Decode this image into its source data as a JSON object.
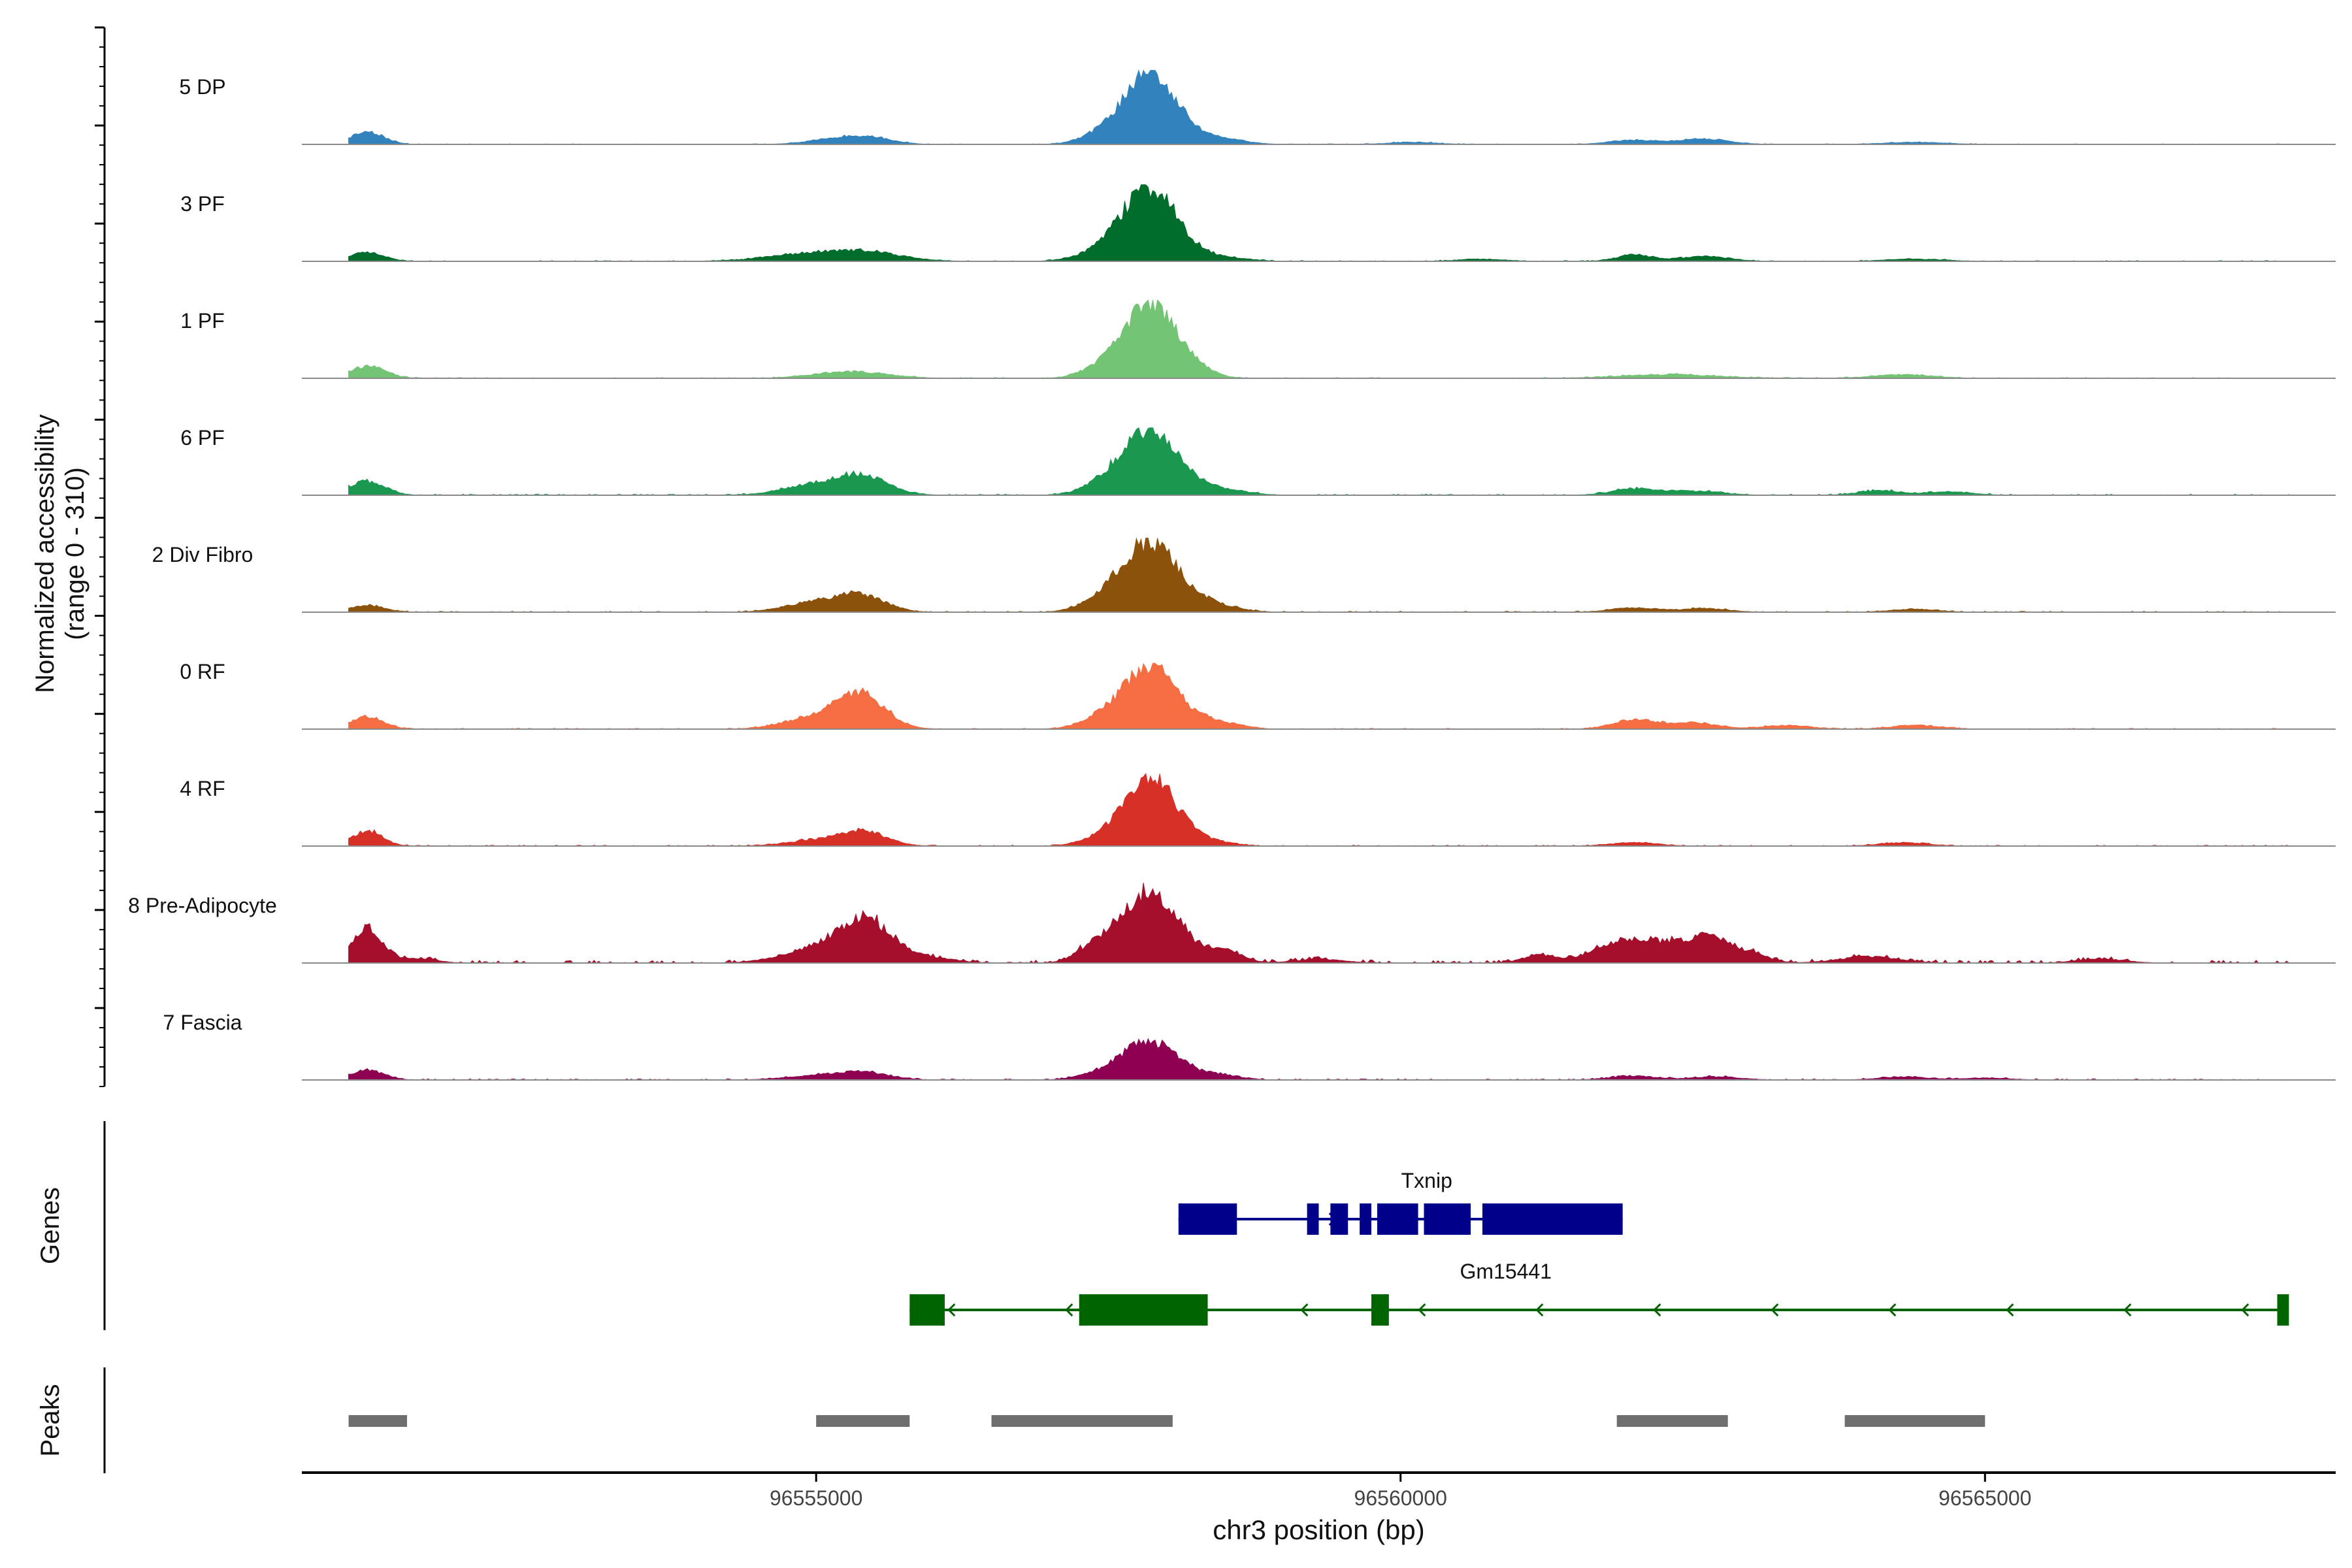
{
  "chart_data": {
    "type": "area",
    "title": "",
    "ylabel_line1": "Normalized accessibility",
    "ylabel_line2": "(range 0 - 310)",
    "xlabel": "chr3 position (bp)",
    "xlim": [
      96550600,
      96568000
    ],
    "ylim": [
      0,
      310
    ],
    "x_ticks": [
      96555000,
      96560000,
      96565000
    ],
    "x_tick_labels": [
      "96555000",
      "96560000",
      "96565000"
    ],
    "tracks": [
      {
        "name": "5 DP",
        "color": "#3182bd",
        "scale": 0.9,
        "peaks": [
          [
            96551160,
            0.18,
            140
          ],
          [
            96555150,
            0.07,
            220
          ],
          [
            96555450,
            0.09,
            200
          ],
          [
            96557340,
            0.06,
            150
          ],
          [
            96557850,
            1.0,
            240
          ],
          [
            96558500,
            0.07,
            180
          ],
          [
            96560100,
            0.03,
            200
          ],
          [
            96562000,
            0.06,
            200
          ],
          [
            96562600,
            0.08,
            200
          ],
          [
            96564400,
            0.03,
            250
          ]
        ],
        "noise": 0.012,
        "range": [
          96551000,
          96567600
        ],
        "seed": 11
      },
      {
        "name": "3 PF",
        "color": "#006d2c",
        "scale": 0.93,
        "peaks": [
          [
            96551160,
            0.12,
            140
          ],
          [
            96555050,
            0.12,
            400
          ],
          [
            96555500,
            0.07,
            280
          ],
          [
            96557400,
            0.08,
            200
          ],
          [
            96557850,
            1.0,
            240
          ],
          [
            96558500,
            0.05,
            200
          ],
          [
            96560700,
            0.03,
            200
          ],
          [
            96562000,
            0.09,
            150
          ],
          [
            96562600,
            0.07,
            200
          ],
          [
            96564400,
            0.03,
            250
          ]
        ],
        "noise": 0.015,
        "range": [
          96551000,
          96567600
        ],
        "seed": 23
      },
      {
        "name": "1 PF",
        "color": "#74c476",
        "scale": 0.95,
        "peaks": [
          [
            96551160,
            0.16,
            150
          ],
          [
            96555300,
            0.09,
            300
          ],
          [
            96557380,
            0.08,
            150
          ],
          [
            96557850,
            1.0,
            230
          ],
          [
            96558250,
            0.08,
            150
          ],
          [
            96562300,
            0.05,
            400
          ],
          [
            96564300,
            0.05,
            250
          ]
        ],
        "noise": 0.015,
        "range": [
          96551000,
          96567600
        ],
        "seed": 37
      },
      {
        "name": "6 PF",
        "color": "#1a9850",
        "scale": 0.82,
        "peaks": [
          [
            96551160,
            0.22,
            150
          ],
          [
            96555000,
            0.15,
            280
          ],
          [
            96555400,
            0.27,
            220
          ],
          [
            96557400,
            0.07,
            180
          ],
          [
            96557850,
            1.0,
            250
          ],
          [
            96558500,
            0.08,
            200
          ],
          [
            96562000,
            0.09,
            200
          ],
          [
            96562500,
            0.06,
            250
          ],
          [
            96564100,
            0.07,
            180
          ],
          [
            96564700,
            0.05,
            200
          ]
        ],
        "noise": 0.025,
        "range": [
          96551000,
          96567600
        ],
        "seed": 41
      },
      {
        "name": "2 Div Fibro",
        "color": "#8c510a",
        "scale": 0.9,
        "peaks": [
          [
            96551160,
            0.1,
            140
          ],
          [
            96555000,
            0.14,
            250
          ],
          [
            96555400,
            0.22,
            200
          ],
          [
            96557370,
            0.08,
            160
          ],
          [
            96557850,
            1.0,
            250
          ],
          [
            96558450,
            0.08,
            180
          ],
          [
            96562000,
            0.06,
            200
          ],
          [
            96562600,
            0.05,
            200
          ],
          [
            96564400,
            0.04,
            200
          ]
        ],
        "noise": 0.02,
        "range": [
          96551000,
          96567600
        ],
        "seed": 53
      },
      {
        "name": "0 RF",
        "color": "#f46d43",
        "scale": 0.8,
        "peaks": [
          [
            96551160,
            0.2,
            140
          ],
          [
            96555000,
            0.2,
            260
          ],
          [
            96555400,
            0.52,
            200
          ],
          [
            96557370,
            0.1,
            150
          ],
          [
            96557850,
            1.0,
            240
          ],
          [
            96558450,
            0.1,
            180
          ],
          [
            96562000,
            0.15,
            180
          ],
          [
            96562500,
            0.1,
            200
          ],
          [
            96563300,
            0.06,
            200
          ],
          [
            96564400,
            0.06,
            200
          ]
        ],
        "noise": 0.02,
        "range": [
          96551000,
          96567600
        ],
        "seed": 67
      },
      {
        "name": "4 RF",
        "color": "#d73027",
        "scale": 0.88,
        "peaks": [
          [
            96551160,
            0.22,
            130
          ],
          [
            96555000,
            0.08,
            250
          ],
          [
            96555400,
            0.2,
            200
          ],
          [
            96557370,
            0.06,
            150
          ],
          [
            96557850,
            1.0,
            230
          ],
          [
            96558400,
            0.05,
            180
          ],
          [
            96562000,
            0.05,
            200
          ],
          [
            96564300,
            0.05,
            200
          ]
        ],
        "noise": 0.02,
        "range": [
          96551000,
          96567600
        ],
        "seed": 79
      },
      {
        "name": "8 Pre-Adipocyte",
        "color": "#a50f2b",
        "scale": 1.0,
        "peaks": [
          [
            96551160,
            0.45,
            130
          ],
          [
            96551600,
            0.06,
            150
          ],
          [
            96555050,
            0.2,
            300
          ],
          [
            96555450,
            0.48,
            220
          ],
          [
            96556000,
            0.06,
            200
          ],
          [
            96557370,
            0.15,
            150
          ],
          [
            96557850,
            0.9,
            250
          ],
          [
            96558500,
            0.14,
            150
          ],
          [
            96559300,
            0.05,
            200
          ],
          [
            96561200,
            0.1,
            150
          ],
          [
            96561800,
            0.18,
            200
          ],
          [
            96562200,
            0.25,
            250
          ],
          [
            96562650,
            0.3,
            180
          ],
          [
            96563000,
            0.1,
            150
          ],
          [
            96564000,
            0.08,
            250
          ],
          [
            96566000,
            0.05,
            200
          ]
        ],
        "noise": 0.05,
        "range": [
          96551000,
          96567600
        ],
        "seed": 97
      },
      {
        "name": "7 Fascia",
        "color": "#8e0152",
        "scale": 0.5,
        "peaks": [
          [
            96551160,
            0.25,
            140
          ],
          [
            96555000,
            0.1,
            260
          ],
          [
            96555400,
            0.18,
            220
          ],
          [
            96557370,
            0.1,
            160
          ],
          [
            96557850,
            1.0,
            240
          ],
          [
            96558450,
            0.12,
            180
          ],
          [
            96562000,
            0.1,
            200
          ],
          [
            96562700,
            0.08,
            200
          ],
          [
            96564300,
            0.08,
            200
          ],
          [
            96565000,
            0.05,
            200
          ]
        ],
        "noise": 0.04,
        "range": [
          96551000,
          96567600
        ],
        "seed": 101
      }
    ],
    "genes_label": "Genes",
    "peaks_label": "Peaks",
    "genes": [
      {
        "name": "Txnip",
        "color": "#00008b",
        "strand": "+",
        "start": 96558100,
        "end": 96561900,
        "exons": [
          [
            96558100,
            96558600
          ],
          [
            96559200,
            96559300
          ],
          [
            96559400,
            96559550
          ],
          [
            96559650,
            96559750
          ],
          [
            96559800,
            96560150
          ],
          [
            96560200,
            96560600
          ],
          [
            96560700,
            96561900
          ]
        ]
      },
      {
        "name": "Gm15441",
        "color": "#006400",
        "strand": "-",
        "start": 96555800,
        "end": 96567600,
        "exons": [
          [
            96555800,
            96556100
          ],
          [
            96557250,
            96558350
          ],
          [
            96559750,
            96559900
          ],
          [
            96567500,
            96567600
          ]
        ]
      }
    ],
    "peak_regions": [
      [
        96551000,
        96551500
      ],
      [
        96555000,
        96555800
      ],
      [
        96556500,
        96558050
      ],
      [
        96561850,
        96562800
      ],
      [
        96563800,
        96565000
      ]
    ]
  }
}
